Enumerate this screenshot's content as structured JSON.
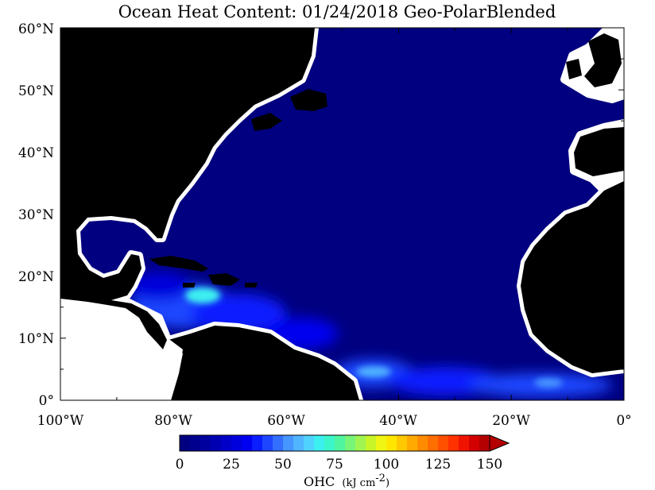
{
  "title": "Ocean Heat Content: 01/24/2018 Geo-PolarBlended",
  "lat_ticks": [
    "0°",
    "10°N",
    "20°N",
    "30°N",
    "40°N",
    "50°N",
    "60°N"
  ],
  "lon_ticks": [
    "100°W",
    "80°W",
    "60°W",
    "40°W",
    "20°W",
    "0°"
  ],
  "colorbar": {
    "tick_labels": [
      "0",
      "25",
      "50",
      "75",
      "100",
      "125",
      "150"
    ],
    "label_prefix": "OHC",
    "label_units": "(kJ cm",
    "label_exp": "-2",
    "label_close": ")",
    "colors": [
      "#000080",
      "#00008f",
      "#00009f",
      "#0000b3",
      "#0000c8",
      "#0000dc",
      "#0000f0",
      "#0a1eff",
      "#1e46ff",
      "#326eff",
      "#4696ff",
      "#50b4ff",
      "#50d2ff",
      "#3cf0f0",
      "#3cf5c8",
      "#50f5a0",
      "#78f578",
      "#a0f550",
      "#c8f528",
      "#f0f514",
      "#ffe600",
      "#ffc800",
      "#ffaa00",
      "#ff8c00",
      "#ff6e00",
      "#ff5000",
      "#ff3200",
      "#f01400",
      "#d20000",
      "#b40000"
    ],
    "extend": "max"
  },
  "legend_colors": {
    "land": "#000000",
    "ocean_background": "#000080",
    "coastal_nodata": "#ffffff"
  }
}
